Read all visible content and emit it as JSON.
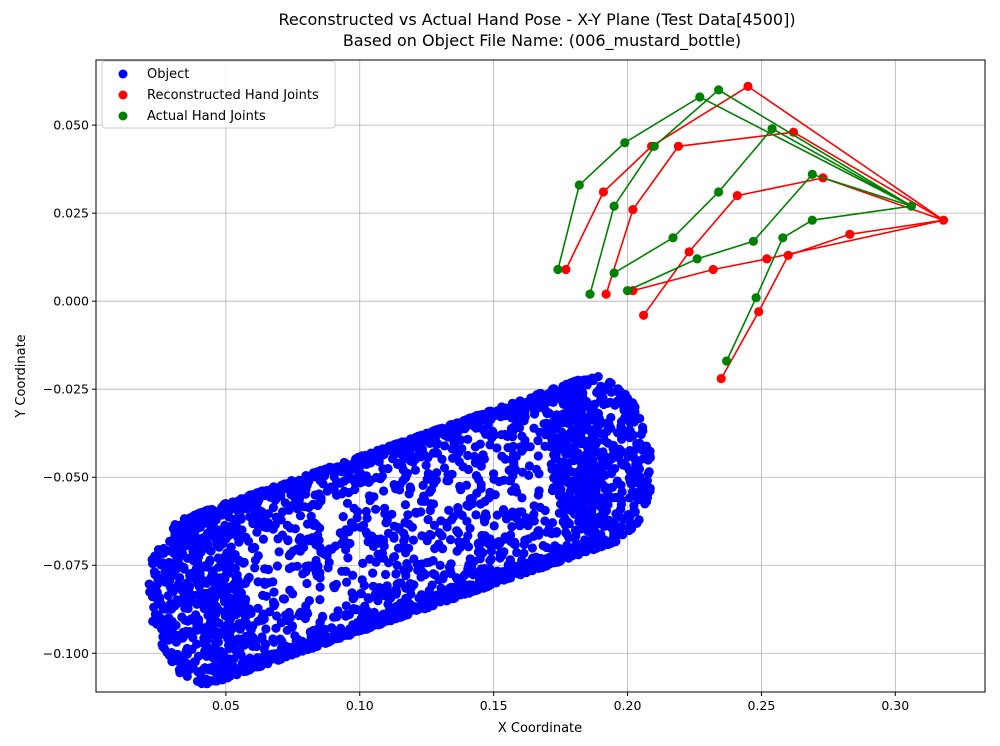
{
  "chart_data": {
    "type": "scatter",
    "title": "Reconstructed vs Actual Hand Pose - X-Y Plane (Test Data[4500])",
    "subtitle": "Based on Object File Name: (006_mustard_bottle)",
    "xlabel": "X Coordinate",
    "ylabel": "Y Coordinate",
    "xlim": [
      0.0015,
      0.3335
    ],
    "ylim": [
      -0.111,
      0.0685
    ],
    "xticks": [
      0.05,
      0.1,
      0.15,
      0.2,
      0.25,
      0.3
    ],
    "xtick_labels": [
      "0.05",
      "0.10",
      "0.15",
      "0.20",
      "0.25",
      "0.30"
    ],
    "yticks": [
      -0.1,
      -0.075,
      -0.05,
      -0.025,
      0.0,
      0.025,
      0.05
    ],
    "ytick_labels": [
      "−0.100",
      "−0.075",
      "−0.050",
      "−0.025",
      "0.000",
      "0.025",
      "0.050"
    ],
    "grid": true,
    "legend_position": "upper-left",
    "series": [
      {
        "name": "Object",
        "color": "#0000ff",
        "shape": "cylinder point cloud",
        "axis_start": [
          0.04,
          -0.085
        ],
        "axis_end": [
          0.19,
          -0.045
        ],
        "radius": 0.024,
        "end_cap_x_extent": [
          0.016,
          0.213
        ]
      },
      {
        "name": "Reconstructed Hand Joints",
        "color": "#ff0000",
        "wrist": [
          0.318,
          0.023
        ],
        "fingers": [
          [
            [
              0.318,
              0.023
            ],
            [
              0.283,
              0.019
            ],
            [
              0.26,
              0.013
            ],
            [
              0.249,
              -0.003
            ],
            [
              0.235,
              -0.022
            ]
          ],
          [
            [
              0.318,
              0.023
            ],
            [
              0.273,
              0.035
            ],
            [
              0.241,
              0.03
            ],
            [
              0.223,
              0.014
            ],
            [
              0.206,
              -0.004
            ]
          ],
          [
            [
              0.318,
              0.023
            ],
            [
              0.262,
              0.048
            ],
            [
              0.219,
              0.044
            ],
            [
              0.202,
              0.026
            ],
            [
              0.192,
              0.002
            ]
          ],
          [
            [
              0.318,
              0.023
            ],
            [
              0.245,
              0.061
            ],
            [
              0.209,
              0.044
            ],
            [
              0.191,
              0.031
            ],
            [
              0.177,
              0.009
            ]
          ],
          [
            [
              0.318,
              0.023
            ],
            [
              0.252,
              0.012
            ],
            [
              0.232,
              0.009
            ],
            [
              0.202,
              0.003
            ]
          ]
        ]
      },
      {
        "name": "Actual Hand Joints",
        "color": "#008000",
        "wrist": [
          0.306,
          0.027
        ],
        "fingers": [
          [
            [
              0.306,
              0.027
            ],
            [
              0.269,
              0.023
            ],
            [
              0.258,
              0.018
            ],
            [
              0.248,
              0.001
            ],
            [
              0.237,
              -0.017
            ]
          ],
          [
            [
              0.306,
              0.027
            ],
            [
              0.269,
              0.036
            ],
            [
              0.247,
              0.017
            ],
            [
              0.226,
              0.012
            ],
            [
              0.2,
              0.003
            ]
          ],
          [
            [
              0.306,
              0.027
            ],
            [
              0.254,
              0.049
            ],
            [
              0.234,
              0.031
            ],
            [
              0.217,
              0.018
            ],
            [
              0.195,
              0.008
            ]
          ],
          [
            [
              0.306,
              0.027
            ],
            [
              0.234,
              0.06
            ],
            [
              0.21,
              0.044
            ],
            [
              0.195,
              0.027
            ],
            [
              0.186,
              0.002
            ]
          ],
          [
            [
              0.306,
              0.027
            ],
            [
              0.227,
              0.058
            ],
            [
              0.199,
              0.045
            ],
            [
              0.182,
              0.033
            ],
            [
              0.174,
              0.009
            ]
          ]
        ]
      }
    ]
  }
}
